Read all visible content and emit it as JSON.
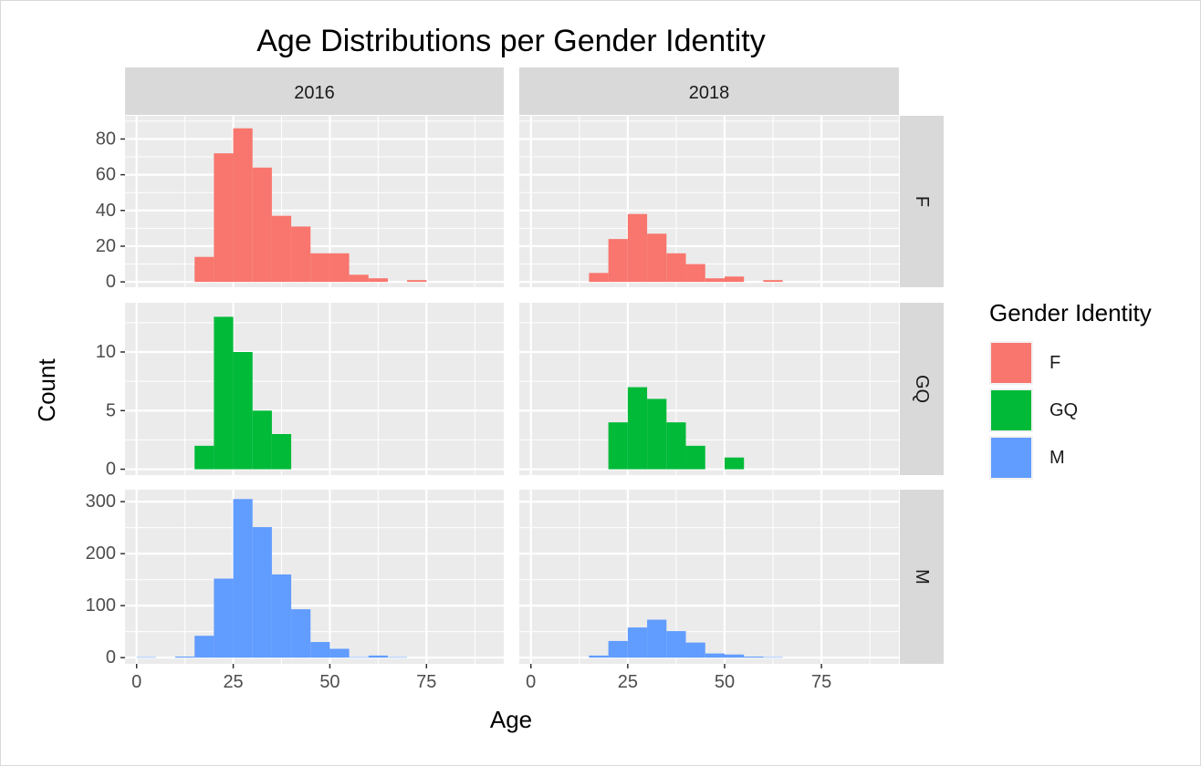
{
  "chart_data": {
    "type": "bar",
    "subtype": "faceted-histogram",
    "title": "Age Distributions per Gender Identity",
    "xlabel": "Age",
    "ylabel": "Count",
    "xlim": [
      -3,
      95
    ],
    "x_ticks": [
      0,
      25,
      50,
      75
    ],
    "bin_width": 5,
    "grid": true,
    "columns": [
      "2016",
      "2018"
    ],
    "rows": [
      {
        "label": "F",
        "ylim": [
          -3,
          93
        ],
        "y_ticks": [
          0,
          20,
          40,
          60,
          80
        ],
        "color": "#F8766D"
      },
      {
        "label": "GQ",
        "ylim": [
          -0.5,
          14.2
        ],
        "y_ticks": [
          0,
          5,
          10
        ],
        "color": "#00BA38"
      },
      {
        "label": "M",
        "ylim": [
          -12,
          323
        ],
        "y_ticks": [
          0,
          100,
          200,
          300
        ],
        "color": "#619CFF"
      }
    ],
    "legend": {
      "title": "Gender Identity",
      "position": "right",
      "entries": [
        {
          "label": "F",
          "color": "#F8766D"
        },
        {
          "label": "GQ",
          "color": "#00BA38"
        },
        {
          "label": "M",
          "color": "#619CFF"
        }
      ]
    },
    "series": [
      {
        "row": "F",
        "column": "2016",
        "bins": [
          [
            17.5,
            14
          ],
          [
            22.5,
            72
          ],
          [
            27.5,
            86
          ],
          [
            32.5,
            64
          ],
          [
            37.5,
            37
          ],
          [
            42.5,
            31
          ],
          [
            47.5,
            16
          ],
          [
            52.5,
            16
          ],
          [
            57.5,
            4
          ],
          [
            62.5,
            2
          ],
          [
            72.5,
            1
          ]
        ]
      },
      {
        "row": "F",
        "column": "2018",
        "bins": [
          [
            17.5,
            5
          ],
          [
            22.5,
            24
          ],
          [
            27.5,
            38
          ],
          [
            32.5,
            27
          ],
          [
            37.5,
            16
          ],
          [
            42.5,
            10
          ],
          [
            47.5,
            2
          ],
          [
            52.5,
            3
          ],
          [
            62.5,
            1
          ]
        ]
      },
      {
        "row": "GQ",
        "column": "2016",
        "bins": [
          [
            17.5,
            2
          ],
          [
            22.5,
            13
          ],
          [
            27.5,
            10
          ],
          [
            32.5,
            5
          ],
          [
            37.5,
            3
          ]
        ]
      },
      {
        "row": "GQ",
        "column": "2018",
        "bins": [
          [
            22.5,
            4
          ],
          [
            27.5,
            7
          ],
          [
            32.5,
            6
          ],
          [
            37.5,
            4
          ],
          [
            42.5,
            2
          ],
          [
            52.5,
            1
          ]
        ]
      },
      {
        "row": "M",
        "column": "2016",
        "bins": [
          [
            2.5,
            1
          ],
          [
            12.5,
            2
          ],
          [
            17.5,
            42
          ],
          [
            22.5,
            152
          ],
          [
            27.5,
            305
          ],
          [
            32.5,
            251
          ],
          [
            37.5,
            160
          ],
          [
            42.5,
            93
          ],
          [
            47.5,
            30
          ],
          [
            52.5,
            17
          ],
          [
            57.5,
            1
          ],
          [
            62.5,
            4
          ],
          [
            67.5,
            1
          ]
        ]
      },
      {
        "row": "M",
        "column": "2018",
        "bins": [
          [
            17.5,
            4
          ],
          [
            22.5,
            32
          ],
          [
            27.5,
            58
          ],
          [
            32.5,
            73
          ],
          [
            37.5,
            51
          ],
          [
            42.5,
            29
          ],
          [
            47.5,
            8
          ],
          [
            52.5,
            6
          ],
          [
            57.5,
            2
          ],
          [
            62.5,
            1
          ]
        ]
      }
    ]
  }
}
